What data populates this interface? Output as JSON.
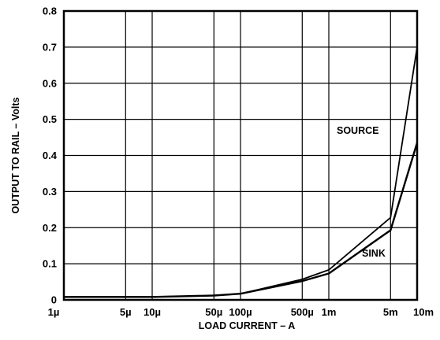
{
  "chart_data": {
    "type": "line",
    "title": "",
    "xlabel": "LOAD CURRENT – A",
    "ylabel": "OUTPUT TO RAIL – Volts",
    "x_scale": "log",
    "x_tick_labels": [
      "1µ",
      "5µ",
      "10µ",
      "50µ",
      "100µ",
      "500µ",
      "1m",
      "5m",
      "10m"
    ],
    "x": [
      1e-06,
      5e-06,
      1e-05,
      5e-05,
      0.0001,
      0.0005,
      0.001,
      0.005,
      0.01
    ],
    "ylim": [
      0,
      0.8
    ],
    "y_tick_labels": [
      "0",
      "0.1",
      "0.2",
      "0.3",
      "0.4",
      "0.5",
      "0.6",
      "0.7",
      "0.8"
    ],
    "grid": true,
    "series": [
      {
        "name": "SOURCE",
        "values": [
          0.008,
          0.008,
          0.008,
          0.012,
          0.017,
          0.057,
          0.083,
          0.228,
          0.7
        ]
      },
      {
        "name": "SINK",
        "values": [
          0.008,
          0.008,
          0.008,
          0.012,
          0.017,
          0.052,
          0.073,
          0.193,
          0.435
        ]
      }
    ],
    "line_color": "#000000"
  }
}
